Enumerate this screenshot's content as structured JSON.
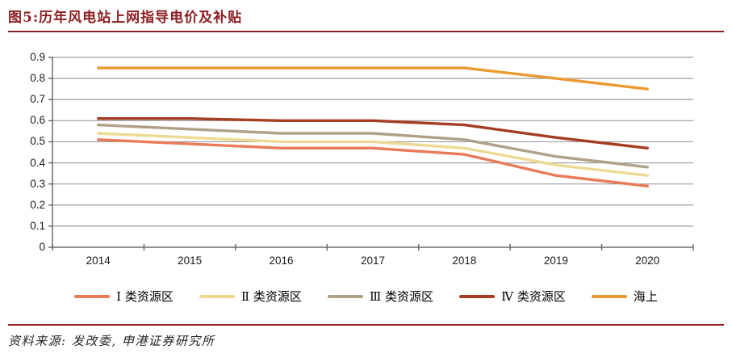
{
  "header": {
    "title": "图5:历年风电站上网指导电价及补贴"
  },
  "source": {
    "label": "资料来源: 发改委, 申港证券研究所"
  },
  "colors": {
    "accent": "#8C1F22",
    "grid": "#9C9C9C",
    "axis": "#6B6B6B",
    "tick_text": "#1A1A1A"
  },
  "chart_data": {
    "type": "line",
    "title": "历年风电站上网指导电价及补贴",
    "categories": [
      "2014",
      "2015",
      "2016",
      "2017",
      "2018",
      "2019",
      "2020"
    ],
    "series": [
      {
        "name": "Ⅰ 类资源区",
        "color": "#E97B59",
        "values": [
          0.51,
          0.49,
          0.47,
          0.47,
          0.44,
          0.34,
          0.29
        ]
      },
      {
        "name": "Ⅱ 类资源区",
        "color": "#EDDA92",
        "values": [
          0.54,
          0.52,
          0.5,
          0.5,
          0.47,
          0.39,
          0.34
        ]
      },
      {
        "name": "Ⅲ 类资源区",
        "color": "#B1A088",
        "values": [
          0.58,
          0.56,
          0.54,
          0.54,
          0.51,
          0.43,
          0.38
        ]
      },
      {
        "name": "Ⅳ 类资源区",
        "color": "#A53E22",
        "values": [
          0.61,
          0.61,
          0.6,
          0.6,
          0.58,
          0.52,
          0.47
        ]
      },
      {
        "name": "海上",
        "color": "#EA9A30",
        "values": [
          0.85,
          0.85,
          0.85,
          0.85,
          0.85,
          0.8,
          0.75
        ]
      }
    ],
    "xlabel": "",
    "ylabel": "",
    "ylim": [
      0,
      0.9
    ],
    "ytick_step": 0.1,
    "y_tick_labels": [
      "0",
      "0.1",
      "0.2",
      "0.3",
      "0.4",
      "0.5",
      "0.6",
      "0.7",
      "0.8",
      "0.9"
    ],
    "grid": true,
    "legend_position": "bottom"
  }
}
